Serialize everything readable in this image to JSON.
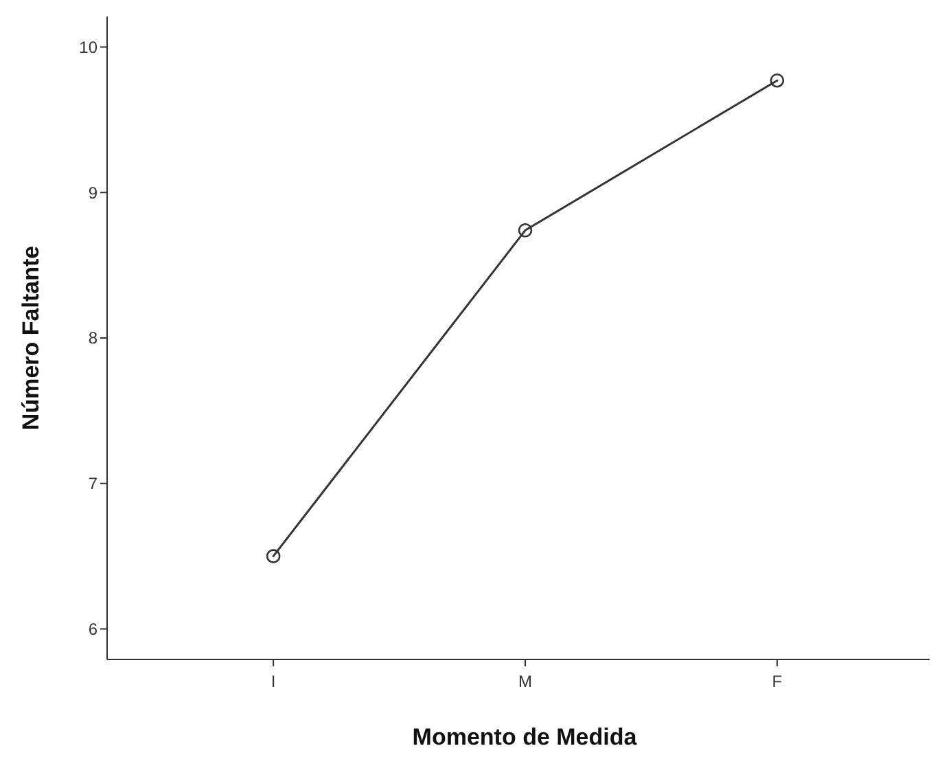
{
  "chart_data": {
    "type": "line",
    "xlabel": "Momento de Medida",
    "ylabel": "Número Faltante",
    "categories": [
      "I",
      "M",
      "F"
    ],
    "series": [
      {
        "color": "#333333",
        "values": [
          6.5,
          8.74,
          9.77
        ]
      }
    ],
    "ylim": [
      5.79,
      10.21
    ],
    "yticks": [
      6,
      7,
      8,
      9,
      10
    ],
    "marker": "circle",
    "line_style": "solid"
  }
}
